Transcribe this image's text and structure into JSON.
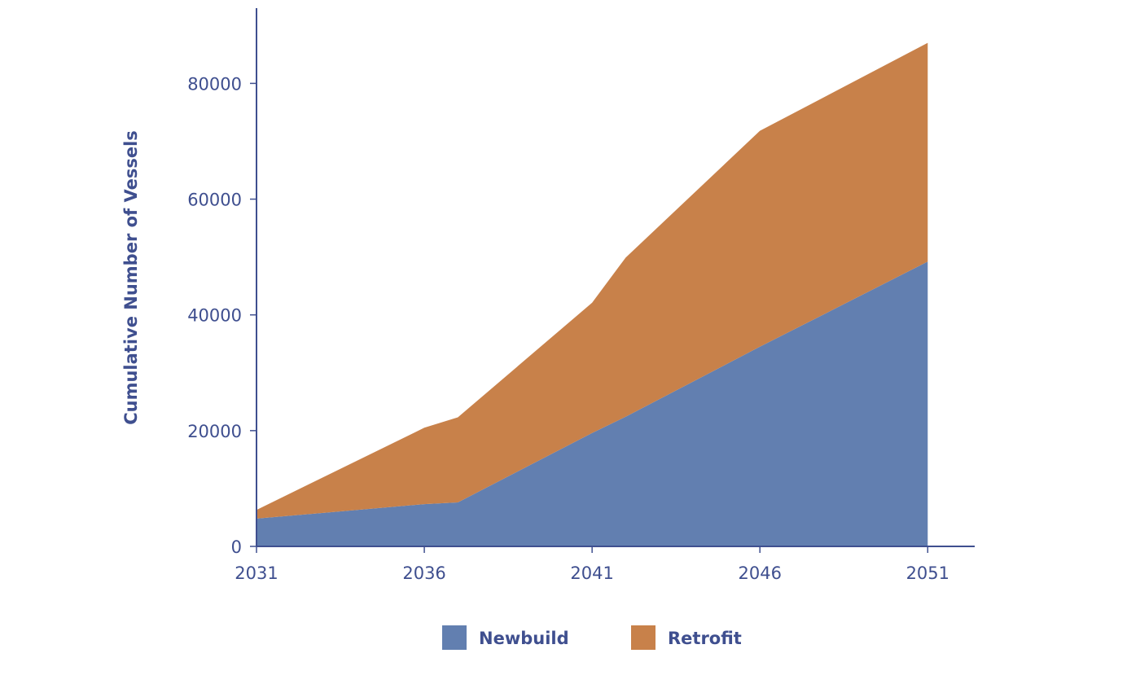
{
  "chart_data": {
    "type": "area",
    "stacked": true,
    "title": "",
    "xlabel": "",
    "ylabel": "Cumulative Number of Vessels",
    "x": [
      2031,
      2036,
      2037,
      2041,
      2042,
      2046,
      2051
    ],
    "x_ticks": [
      "2031",
      "2036",
      "2041",
      "2046",
      "2051"
    ],
    "y_ticks": [
      "0",
      "20000",
      "40000",
      "60000",
      "80000"
    ],
    "xlim": [
      2031,
      2052.4
    ],
    "ylim": [
      0,
      93000
    ],
    "grid": false,
    "legend_position": "bottom",
    "series": [
      {
        "name": "Newbuild",
        "color": "#627fb0",
        "values": [
          4800,
          7300,
          7600,
          19600,
          22400,
          34500,
          49200
        ]
      },
      {
        "name": "Retrofit",
        "color": "#c8814a",
        "values": [
          1500,
          13200,
          14700,
          22500,
          27500,
          37300,
          37800
        ]
      }
    ],
    "axis_color": "#3f4f8f"
  }
}
